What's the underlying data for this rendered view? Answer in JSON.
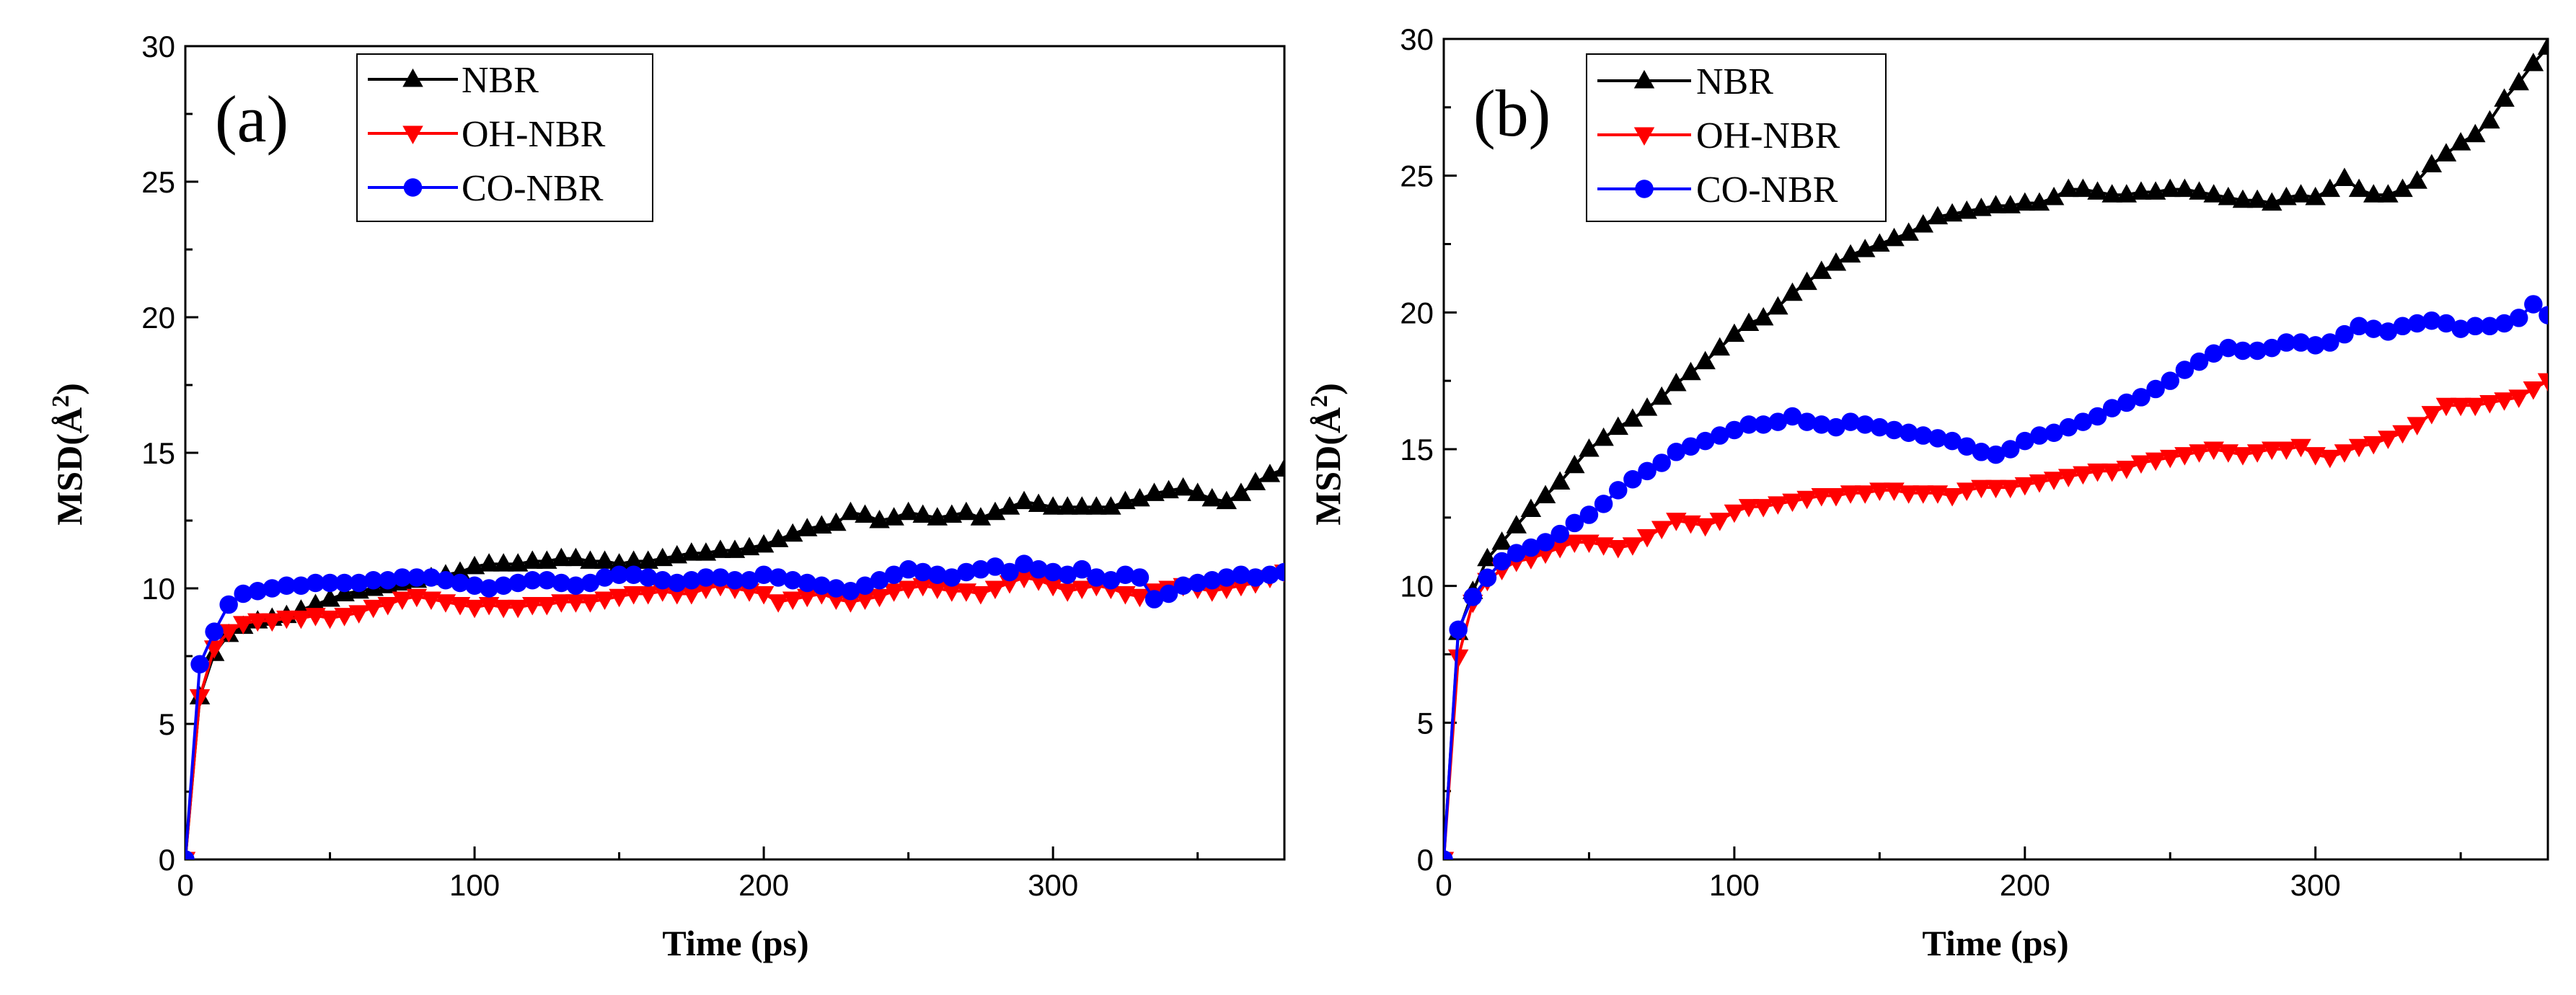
{
  "chart_data": [
    {
      "type": "line",
      "panel_label": "(a)",
      "xlabel": "Time (ps)",
      "ylabel": "MSD(Å²)",
      "ylabel_main": "MSD(",
      "ylabel_unit": "Å",
      "ylabel_sup": "2",
      "ylabel_close": ")",
      "xlim": [
        0,
        380
      ],
      "ylim": [
        0,
        30
      ],
      "xticks": [
        0,
        100,
        200,
        300
      ],
      "yticks": [
        0,
        5,
        10,
        15,
        20,
        25,
        30
      ],
      "legend_position": "top-left",
      "series": [
        {
          "name": "NBR",
          "color": "#000000",
          "marker": "triangle-up",
          "x": [
            0,
            5,
            10,
            15,
            20,
            25,
            30,
            35,
            40,
            45,
            50,
            55,
            60,
            65,
            70,
            75,
            80,
            85,
            90,
            95,
            100,
            105,
            110,
            115,
            120,
            125,
            130,
            135,
            140,
            145,
            150,
            155,
            160,
            165,
            170,
            175,
            180,
            185,
            190,
            195,
            200,
            205,
            210,
            215,
            220,
            225,
            230,
            235,
            240,
            245,
            250,
            255,
            260,
            265,
            270,
            275,
            280,
            285,
            290,
            295,
            300,
            305,
            310,
            315,
            320,
            325,
            330,
            335,
            340,
            345,
            350,
            355,
            360,
            365,
            370,
            375,
            380
          ],
          "y": [
            0,
            6.0,
            7.6,
            8.3,
            8.6,
            8.8,
            8.9,
            9.0,
            9.2,
            9.4,
            9.6,
            9.8,
            9.9,
            10.0,
            10.1,
            10.2,
            10.3,
            10.4,
            10.5,
            10.6,
            10.8,
            10.9,
            10.9,
            10.9,
            11.0,
            11.0,
            11.1,
            11.1,
            11.0,
            11.0,
            10.9,
            11.0,
            11.0,
            11.1,
            11.2,
            11.3,
            11.3,
            11.4,
            11.4,
            11.5,
            11.6,
            11.8,
            12.0,
            12.2,
            12.3,
            12.4,
            12.8,
            12.7,
            12.5,
            12.6,
            12.8,
            12.7,
            12.6,
            12.7,
            12.8,
            12.6,
            12.8,
            13.0,
            13.2,
            13.1,
            13.0,
            13.0,
            13.0,
            13.0,
            13.0,
            13.2,
            13.3,
            13.5,
            13.6,
            13.7,
            13.5,
            13.3,
            13.2,
            13.5,
            13.9,
            14.2,
            14.4
          ]
        },
        {
          "name": "OH-NBR",
          "color": "#ff0000",
          "marker": "triangle-down",
          "x": [
            0,
            5,
            10,
            15,
            20,
            25,
            30,
            35,
            40,
            45,
            50,
            55,
            60,
            65,
            70,
            75,
            80,
            85,
            90,
            95,
            100,
            105,
            110,
            115,
            120,
            125,
            130,
            135,
            140,
            145,
            150,
            155,
            160,
            165,
            170,
            175,
            180,
            185,
            190,
            195,
            200,
            205,
            210,
            215,
            220,
            225,
            230,
            235,
            240,
            245,
            250,
            255,
            260,
            265,
            270,
            275,
            280,
            285,
            290,
            295,
            300,
            305,
            310,
            315,
            320,
            325,
            330,
            335,
            340,
            345,
            350,
            355,
            360,
            365,
            370,
            375,
            380
          ],
          "y": [
            0,
            6.0,
            7.8,
            8.4,
            8.7,
            8.8,
            8.8,
            8.9,
            8.9,
            9.0,
            8.9,
            9.0,
            9.1,
            9.3,
            9.4,
            9.6,
            9.7,
            9.6,
            9.5,
            9.4,
            9.3,
            9.4,
            9.3,
            9.3,
            9.4,
            9.4,
            9.5,
            9.5,
            9.5,
            9.6,
            9.7,
            9.8,
            9.8,
            9.9,
            9.8,
            9.8,
            10.0,
            10.1,
            10.0,
            9.9,
            9.8,
            9.5,
            9.6,
            9.7,
            9.8,
            9.6,
            9.5,
            9.6,
            9.7,
            9.9,
            10.0,
            10.1,
            10.0,
            9.9,
            9.9,
            9.8,
            10.0,
            10.2,
            10.4,
            10.3,
            10.1,
            9.9,
            10.0,
            10.1,
            10.0,
            9.8,
            9.7,
            9.9,
            10.0,
            10.1,
            10.0,
            9.9,
            10.0,
            10.1,
            10.2,
            10.4,
            10.6
          ]
        },
        {
          "name": "CO-NBR",
          "color": "#0000ff",
          "marker": "circle",
          "x": [
            0,
            5,
            10,
            15,
            20,
            25,
            30,
            35,
            40,
            45,
            50,
            55,
            60,
            65,
            70,
            75,
            80,
            85,
            90,
            95,
            100,
            105,
            110,
            115,
            120,
            125,
            130,
            135,
            140,
            145,
            150,
            155,
            160,
            165,
            170,
            175,
            180,
            185,
            190,
            195,
            200,
            205,
            210,
            215,
            220,
            225,
            230,
            235,
            240,
            245,
            250,
            255,
            260,
            265,
            270,
            275,
            280,
            285,
            290,
            295,
            300,
            305,
            310,
            315,
            320,
            325,
            330,
            335,
            340,
            345,
            350,
            355,
            360,
            365,
            370,
            375,
            380
          ],
          "y": [
            0,
            7.2,
            8.4,
            9.4,
            9.8,
            9.9,
            10.0,
            10.1,
            10.1,
            10.2,
            10.2,
            10.2,
            10.2,
            10.3,
            10.3,
            10.4,
            10.4,
            10.4,
            10.3,
            10.2,
            10.1,
            10.0,
            10.1,
            10.2,
            10.3,
            10.3,
            10.2,
            10.1,
            10.2,
            10.4,
            10.5,
            10.5,
            10.4,
            10.3,
            10.2,
            10.3,
            10.4,
            10.4,
            10.3,
            10.3,
            10.5,
            10.4,
            10.3,
            10.2,
            10.1,
            10.0,
            9.9,
            10.1,
            10.3,
            10.5,
            10.7,
            10.6,
            10.5,
            10.4,
            10.6,
            10.7,
            10.8,
            10.6,
            10.9,
            10.7,
            10.6,
            10.5,
            10.7,
            10.4,
            10.3,
            10.5,
            10.4,
            9.6,
            9.8,
            10.1,
            10.2,
            10.3,
            10.4,
            10.5,
            10.4,
            10.5,
            10.6
          ]
        }
      ]
    },
    {
      "type": "line",
      "panel_label": "(b)",
      "xlabel": "Time (ps)",
      "ylabel": "MSD(Å²)",
      "ylabel_main": "MSD(",
      "ylabel_unit": "Å",
      "ylabel_sup": "2",
      "ylabel_close": ")",
      "xlim": [
        0,
        380
      ],
      "ylim": [
        0,
        30
      ],
      "xticks": [
        0,
        100,
        200,
        300
      ],
      "yticks": [
        0,
        5,
        10,
        15,
        20,
        25,
        30
      ],
      "legend_position": "top-left",
      "series": [
        {
          "name": "NBR",
          "color": "#000000",
          "marker": "triangle-up",
          "x": [
            0,
            5,
            10,
            15,
            20,
            25,
            30,
            35,
            40,
            45,
            50,
            55,
            60,
            65,
            70,
            75,
            80,
            85,
            90,
            95,
            100,
            105,
            110,
            115,
            120,
            125,
            130,
            135,
            140,
            145,
            150,
            155,
            160,
            165,
            170,
            175,
            180,
            185,
            190,
            195,
            200,
            205,
            210,
            215,
            220,
            225,
            230,
            235,
            240,
            245,
            250,
            255,
            260,
            265,
            270,
            275,
            280,
            285,
            290,
            295,
            300,
            305,
            310,
            315,
            320,
            325,
            330,
            335,
            340,
            345,
            350,
            355,
            360,
            365,
            370,
            375,
            380
          ],
          "y": [
            0,
            8.3,
            9.8,
            11.0,
            11.6,
            12.2,
            12.8,
            13.3,
            13.8,
            14.4,
            15.0,
            15.4,
            15.8,
            16.1,
            16.5,
            16.9,
            17.4,
            17.8,
            18.2,
            18.7,
            19.2,
            19.6,
            19.8,
            20.2,
            20.7,
            21.1,
            21.5,
            21.8,
            22.1,
            22.3,
            22.5,
            22.7,
            22.9,
            23.2,
            23.5,
            23.6,
            23.7,
            23.8,
            23.9,
            23.9,
            24.0,
            24.0,
            24.2,
            24.5,
            24.5,
            24.4,
            24.3,
            24.3,
            24.4,
            24.4,
            24.5,
            24.5,
            24.4,
            24.3,
            24.2,
            24.1,
            24.1,
            24.0,
            24.2,
            24.3,
            24.2,
            24.5,
            24.9,
            24.5,
            24.3,
            24.3,
            24.5,
            24.8,
            25.4,
            25.8,
            26.2,
            26.5,
            27.0,
            27.8,
            28.4,
            29.1,
            29.7
          ]
        },
        {
          "name": "OH-NBR",
          "color": "#ff0000",
          "marker": "triangle-down",
          "x": [
            0,
            5,
            10,
            15,
            20,
            25,
            30,
            35,
            40,
            45,
            50,
            55,
            60,
            65,
            70,
            75,
            80,
            85,
            90,
            95,
            100,
            105,
            110,
            115,
            120,
            125,
            130,
            135,
            140,
            145,
            150,
            155,
            160,
            165,
            170,
            175,
            180,
            185,
            190,
            195,
            200,
            205,
            210,
            215,
            220,
            225,
            230,
            235,
            240,
            245,
            250,
            255,
            260,
            265,
            270,
            275,
            280,
            285,
            290,
            295,
            300,
            305,
            310,
            315,
            320,
            325,
            330,
            335,
            340,
            345,
            350,
            355,
            360,
            365,
            370,
            375,
            380
          ],
          "y": [
            0,
            7.4,
            9.4,
            10.2,
            10.6,
            10.9,
            11.0,
            11.2,
            11.4,
            11.6,
            11.6,
            11.5,
            11.4,
            11.5,
            11.8,
            12.1,
            12.4,
            12.3,
            12.2,
            12.4,
            12.7,
            12.9,
            12.9,
            13.0,
            13.1,
            13.2,
            13.3,
            13.3,
            13.4,
            13.4,
            13.5,
            13.5,
            13.4,
            13.4,
            13.4,
            13.3,
            13.5,
            13.6,
            13.6,
            13.6,
            13.7,
            13.8,
            13.9,
            14.0,
            14.1,
            14.2,
            14.2,
            14.3,
            14.5,
            14.6,
            14.7,
            14.8,
            14.9,
            15.0,
            14.9,
            14.8,
            14.9,
            15.0,
            15.0,
            15.1,
            14.8,
            14.7,
            14.9,
            15.1,
            15.2,
            15.4,
            15.6,
            15.9,
            16.3,
            16.6,
            16.6,
            16.6,
            16.7,
            16.8,
            16.9,
            17.2,
            17.5
          ]
        },
        {
          "name": "CO-NBR",
          "color": "#0000ff",
          "marker": "circle",
          "x": [
            0,
            5,
            10,
            15,
            20,
            25,
            30,
            35,
            40,
            45,
            50,
            55,
            60,
            65,
            70,
            75,
            80,
            85,
            90,
            95,
            100,
            105,
            110,
            115,
            120,
            125,
            130,
            135,
            140,
            145,
            150,
            155,
            160,
            165,
            170,
            175,
            180,
            185,
            190,
            195,
            200,
            205,
            210,
            215,
            220,
            225,
            230,
            235,
            240,
            245,
            250,
            255,
            260,
            265,
            270,
            275,
            280,
            285,
            290,
            295,
            300,
            305,
            310,
            315,
            320,
            325,
            330,
            335,
            340,
            345,
            350,
            355,
            360,
            365,
            370,
            375,
            380
          ],
          "y": [
            0,
            8.4,
            9.6,
            10.3,
            10.9,
            11.2,
            11.4,
            11.6,
            11.9,
            12.3,
            12.6,
            13.0,
            13.5,
            13.9,
            14.2,
            14.5,
            14.9,
            15.1,
            15.3,
            15.5,
            15.7,
            15.9,
            15.9,
            16.0,
            16.2,
            16.0,
            15.9,
            15.8,
            16.0,
            15.9,
            15.8,
            15.7,
            15.6,
            15.5,
            15.4,
            15.3,
            15.1,
            14.9,
            14.8,
            15.0,
            15.3,
            15.5,
            15.6,
            15.8,
            16.0,
            16.2,
            16.5,
            16.7,
            16.9,
            17.2,
            17.5,
            17.9,
            18.2,
            18.5,
            18.7,
            18.6,
            18.6,
            18.7,
            18.9,
            18.9,
            18.8,
            18.9,
            19.2,
            19.5,
            19.4,
            19.3,
            19.5,
            19.6,
            19.7,
            19.6,
            19.4,
            19.5,
            19.5,
            19.6,
            19.8,
            20.3,
            19.9
          ]
        }
      ]
    }
  ]
}
